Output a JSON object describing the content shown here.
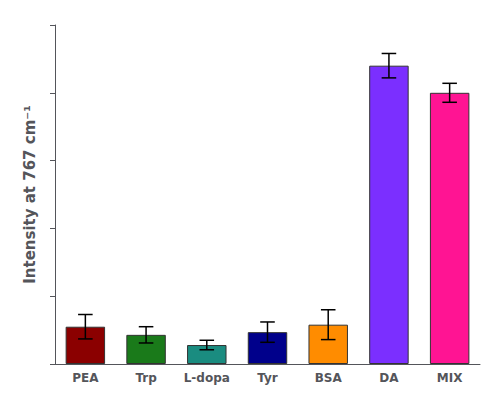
{
  "chart_data": {
    "type": "bar",
    "categories": [
      "PEA",
      "Trp",
      "L-dopa",
      "Tyr",
      "BSA",
      "DA",
      "MIX"
    ],
    "values": [
      0.055,
      0.043,
      0.028,
      0.047,
      0.058,
      0.44,
      0.4
    ],
    "errors": [
      0.018,
      0.012,
      0.007,
      0.015,
      0.022,
      0.018,
      0.014
    ],
    "colors": [
      "#8B0000",
      "#1a7a1a",
      "#1a8c80",
      "#00008B",
      "#FF8C00",
      "#7B2FFF",
      "#FF1493"
    ],
    "ylabel": "Intensity at 767 cm⁻¹",
    "ylim": [
      0,
      0.5
    ],
    "yticks": [
      0,
      0.1,
      0.2,
      0.3,
      0.4,
      0.5
    ],
    "grid": false,
    "tick_labels": "x"
  }
}
